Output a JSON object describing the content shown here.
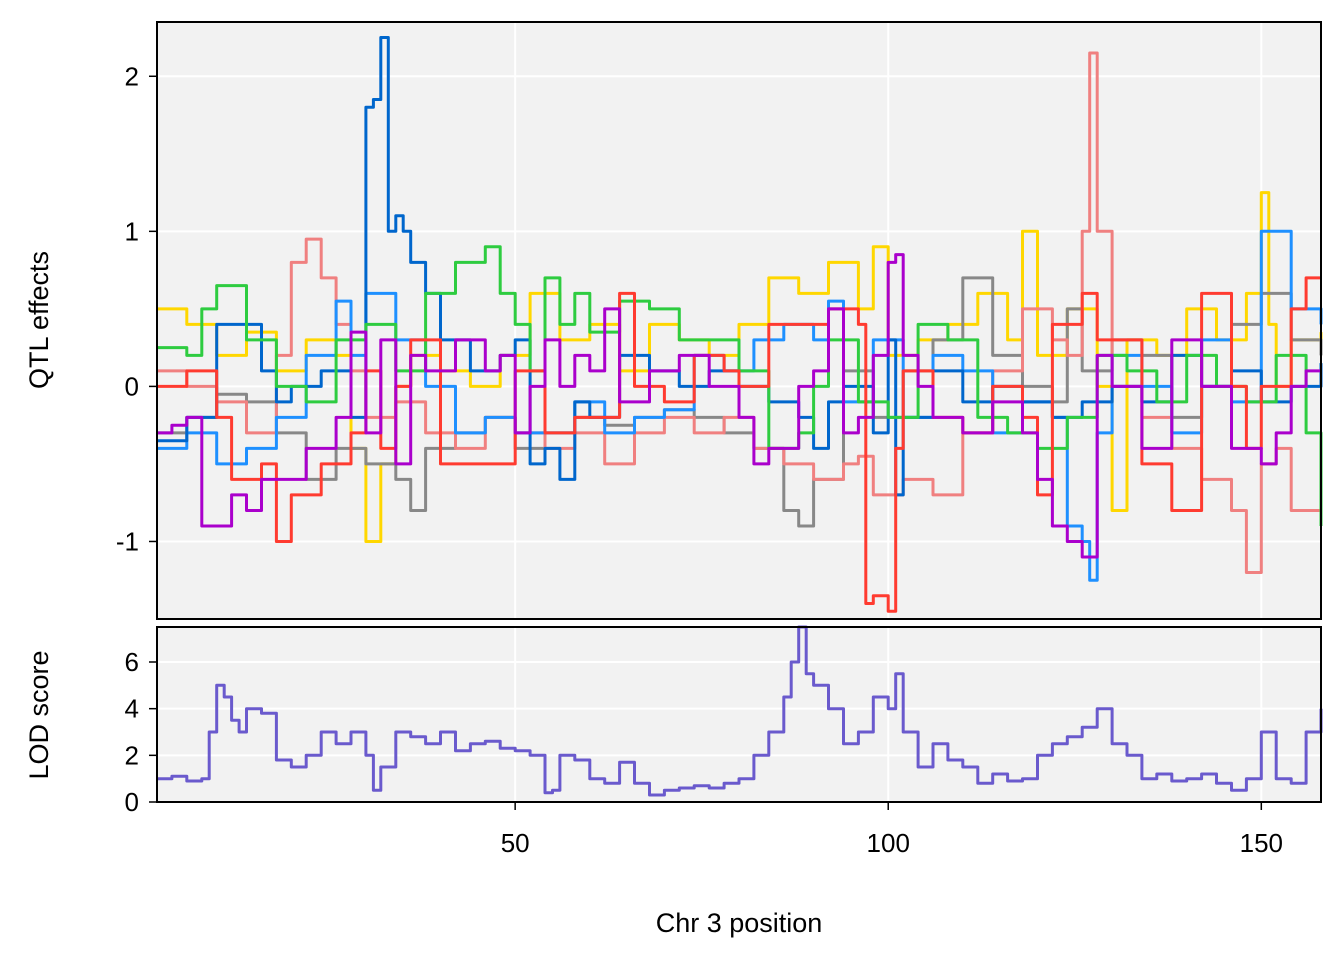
{
  "chart_data": [
    {
      "type": "line",
      "title": "",
      "xlabel": "",
      "ylabel": "QTL effects",
      "xlim": [
        2,
        158
      ],
      "ylim": [
        -1.5,
        2.35
      ],
      "x_ticks": [
        50,
        100,
        150
      ],
      "y_ticks": [
        -1,
        0,
        1,
        2
      ],
      "y_tick_labels": [
        "-1",
        "0",
        "1",
        "2"
      ],
      "grid": true,
      "background": "#f2f2f2",
      "series": [
        {
          "color": "#ffd700",
          "x": [
            2,
            6,
            10,
            14,
            18,
            22,
            26,
            28,
            30,
            32,
            34,
            36,
            40,
            44,
            48,
            52,
            56,
            60,
            64,
            68,
            72,
            76,
            80,
            84,
            88,
            92,
            96,
            98,
            100,
            104,
            108,
            112,
            116,
            118,
            120,
            124,
            128,
            130,
            132,
            136,
            140,
            144,
            148,
            150,
            151,
            152,
            154,
            158
          ],
          "y": [
            0.5,
            0.4,
            0.2,
            0.35,
            0.1,
            0.3,
            0.2,
            -0.4,
            -1.0,
            -0.5,
            0.0,
            0.2,
            0.1,
            0.0,
            0.2,
            0.6,
            0.3,
            0.4,
            0.1,
            0.4,
            0.3,
            0.2,
            0.4,
            0.7,
            0.6,
            0.8,
            0.5,
            0.9,
            0.2,
            0.3,
            0.4,
            0.6,
            0.3,
            1.0,
            0.2,
            0.5,
            0.0,
            -0.8,
            0.3,
            0.2,
            0.5,
            0.3,
            0.6,
            1.25,
            0.4,
            0.0,
            0.3,
            0.35
          ]
        },
        {
          "color": "#888888",
          "x": [
            2,
            6,
            10,
            14,
            18,
            22,
            26,
            30,
            34,
            36,
            38,
            42,
            46,
            50,
            54,
            58,
            62,
            66,
            70,
            74,
            78,
            82,
            86,
            88,
            90,
            94,
            98,
            102,
            106,
            110,
            114,
            118,
            122,
            124,
            126,
            130,
            134,
            138,
            142,
            146,
            150,
            154,
            158
          ],
          "y": [
            -0.3,
            -0.2,
            -0.05,
            -0.1,
            -0.3,
            -0.6,
            -0.4,
            -0.5,
            -0.6,
            -0.8,
            -0.4,
            -0.3,
            -0.2,
            -0.4,
            -0.3,
            -0.2,
            -0.25,
            -0.2,
            -0.15,
            -0.2,
            -0.3,
            -0.4,
            -0.8,
            -0.9,
            -0.6,
            0.1,
            -0.2,
            0.1,
            0.3,
            0.7,
            0.2,
            0.0,
            -0.1,
            0.5,
            0.1,
            0.3,
            0.2,
            -0.2,
            0.0,
            0.4,
            0.6,
            0.3,
            0.2
          ]
        },
        {
          "color": "#f08080",
          "x": [
            2,
            6,
            10,
            14,
            18,
            20,
            22,
            24,
            26,
            28,
            30,
            34,
            38,
            42,
            46,
            50,
            54,
            58,
            62,
            66,
            70,
            74,
            78,
            82,
            86,
            90,
            94,
            96,
            98,
            102,
            106,
            110,
            114,
            118,
            122,
            124,
            126,
            127,
            128,
            130,
            134,
            138,
            142,
            146,
            148,
            150,
            152,
            154,
            158
          ],
          "y": [
            0.1,
            0.0,
            -0.1,
            -0.3,
            0.2,
            0.8,
            0.95,
            0.7,
            0.4,
            0.1,
            -0.2,
            -0.1,
            -0.3,
            -0.4,
            -0.2,
            -0.3,
            -0.4,
            -0.3,
            -0.5,
            -0.3,
            -0.2,
            -0.3,
            -0.2,
            -0.4,
            -0.5,
            -0.6,
            -0.5,
            -0.45,
            -0.7,
            -0.6,
            -0.7,
            -0.3,
            0.1,
            0.5,
            0.3,
            0.2,
            1.0,
            2.15,
            1.0,
            0.0,
            -0.2,
            -0.4,
            -0.6,
            -0.8,
            -1.2,
            -0.5,
            -0.4,
            -0.8,
            -0.7
          ]
        },
        {
          "color": "#1e90ff",
          "x": [
            2,
            6,
            10,
            14,
            18,
            22,
            26,
            28,
            30,
            34,
            38,
            42,
            46,
            50,
            54,
            58,
            62,
            66,
            70,
            74,
            78,
            82,
            86,
            90,
            92,
            94,
            98,
            102,
            106,
            110,
            114,
            118,
            122,
            124,
            126,
            127,
            128,
            130,
            134,
            138,
            142,
            146,
            150,
            154,
            158
          ],
          "y": [
            -0.4,
            -0.3,
            -0.5,
            -0.4,
            -0.2,
            0.2,
            0.55,
            0.2,
            0.6,
            0.3,
            0.0,
            -0.3,
            -0.2,
            -0.3,
            -0.3,
            -0.1,
            -0.3,
            -0.2,
            -0.15,
            0.2,
            0.1,
            0.3,
            0.4,
            0.3,
            0.55,
            -0.1,
            0.3,
            -0.2,
            0.2,
            0.1,
            -0.3,
            -0.1,
            -0.2,
            -0.9,
            -1.0,
            -1.25,
            -0.3,
            0.2,
            0.0,
            -0.3,
            0.3,
            -0.1,
            1.0,
            0.5,
            0.4
          ]
        },
        {
          "color": "#0066cc",
          "x": [
            2,
            6,
            10,
            14,
            16,
            18,
            20,
            24,
            28,
            30,
            31,
            32,
            33,
            34,
            35,
            36,
            38,
            40,
            44,
            48,
            50,
            52,
            54,
            56,
            58,
            60,
            64,
            68,
            72,
            76,
            80,
            84,
            88,
            90,
            92,
            94,
            98,
            100,
            101,
            102,
            106,
            110,
            114,
            118,
            122,
            126,
            130,
            134,
            138,
            142,
            146,
            150,
            154,
            158
          ],
          "y": [
            -0.35,
            -0.2,
            0.4,
            0.4,
            0.1,
            -0.1,
            0.0,
            0.1,
            -0.2,
            1.8,
            1.85,
            2.25,
            1.0,
            1.1,
            1.0,
            0.8,
            0.6,
            0.3,
            0.1,
            0.2,
            0.3,
            -0.5,
            -0.4,
            -0.6,
            -0.1,
            -0.2,
            0.2,
            0.1,
            0.0,
            0.1,
            0.0,
            -0.1,
            -0.2,
            -0.4,
            -0.1,
            0.0,
            -0.3,
            0.3,
            -0.7,
            -0.2,
            0.1,
            -0.1,
            0.0,
            -0.1,
            -0.2,
            -0.1,
            0.0,
            -0.1,
            0.2,
            0.0,
            0.1,
            -0.1,
            0.0,
            0.15
          ]
        },
        {
          "color": "#2ecc40",
          "x": [
            2,
            6,
            8,
            10,
            14,
            18,
            22,
            26,
            30,
            34,
            38,
            42,
            46,
            48,
            50,
            52,
            54,
            56,
            58,
            60,
            64,
            68,
            72,
            76,
            80,
            84,
            88,
            90,
            92,
            96,
            100,
            104,
            108,
            112,
            116,
            120,
            124,
            128,
            132,
            136,
            140,
            144,
            148,
            152,
            156,
            158
          ],
          "y": [
            0.25,
            0.2,
            0.5,
            0.65,
            0.3,
            0.0,
            -0.1,
            0.3,
            0.4,
            0.1,
            0.6,
            0.8,
            0.9,
            0.6,
            0.4,
            0.1,
            0.7,
            0.4,
            0.6,
            0.35,
            0.55,
            0.5,
            0.3,
            0.3,
            0.1,
            -0.4,
            -0.3,
            0.0,
            0.3,
            -0.1,
            -0.2,
            0.4,
            0.3,
            -0.2,
            -0.3,
            -0.4,
            -0.2,
            0.2,
            0.1,
            -0.1,
            0.2,
            0.0,
            -0.1,
            0.2,
            -0.3,
            -0.9
          ]
        },
        {
          "color": "#ff3b30",
          "x": [
            2,
            6,
            10,
            12,
            16,
            18,
            20,
            24,
            28,
            30,
            32,
            34,
            36,
            40,
            44,
            48,
            50,
            54,
            58,
            62,
            64,
            66,
            70,
            74,
            78,
            80,
            84,
            88,
            92,
            96,
            97,
            98,
            100,
            101,
            102,
            106,
            110,
            114,
            118,
            120,
            122,
            126,
            128,
            130,
            134,
            138,
            142,
            146,
            148,
            150,
            154,
            156,
            158
          ],
          "y": [
            0.0,
            0.1,
            -0.2,
            -0.6,
            -0.5,
            -1.0,
            -0.7,
            -0.5,
            -0.3,
            0.1,
            -0.4,
            0.0,
            0.3,
            -0.5,
            -0.5,
            -0.5,
            0.1,
            -0.3,
            -0.2,
            -0.2,
            0.6,
            0.0,
            -0.1,
            0.2,
            0.1,
            0.0,
            0.4,
            0.4,
            0.5,
            0.4,
            -1.4,
            -1.35,
            -1.45,
            -0.4,
            0.1,
            -0.2,
            -0.3,
            0.0,
            -0.2,
            -0.7,
            0.4,
            0.6,
            0.3,
            0.3,
            -0.5,
            -0.8,
            0.6,
            0.0,
            -0.4,
            0.0,
            0.5,
            0.7,
            0.7
          ]
        },
        {
          "color": "#aa00cc",
          "x": [
            2,
            4,
            6,
            8,
            10,
            12,
            14,
            16,
            18,
            22,
            26,
            28,
            30,
            32,
            34,
            36,
            38,
            42,
            46,
            48,
            50,
            52,
            54,
            56,
            58,
            60,
            62,
            64,
            68,
            72,
            76,
            80,
            82,
            84,
            88,
            90,
            92,
            94,
            96,
            98,
            100,
            101,
            102,
            104,
            106,
            110,
            114,
            118,
            120,
            122,
            124,
            126,
            128,
            130,
            134,
            138,
            142,
            146,
            150,
            152,
            154,
            156,
            158
          ],
          "y": [
            -0.3,
            -0.25,
            -0.2,
            -0.9,
            -0.9,
            -0.7,
            -0.8,
            -0.6,
            -0.6,
            -0.4,
            -0.2,
            0.35,
            -0.3,
            0.3,
            -0.5,
            0.2,
            0.1,
            0.3,
            0.1,
            0.2,
            -0.3,
            0.0,
            0.3,
            0.0,
            0.2,
            0.1,
            0.5,
            -0.1,
            0.1,
            0.2,
            0.0,
            -0.2,
            -0.5,
            -0.4,
            0.0,
            0.1,
            0.5,
            -0.3,
            -0.2,
            0.2,
            0.8,
            0.85,
            0.2,
            0.0,
            -0.2,
            -0.3,
            -0.1,
            -0.3,
            -0.6,
            -0.9,
            -1.0,
            -1.1,
            0.2,
            0.0,
            -0.4,
            0.3,
            0.0,
            -0.4,
            -0.5,
            -0.3,
            0.0,
            0.1,
            0.1
          ]
        }
      ]
    },
    {
      "type": "line",
      "title": "",
      "xlabel": "Chr 3 position",
      "ylabel": "LOD score",
      "xlim": [
        2,
        158
      ],
      "ylim": [
        0,
        7.5
      ],
      "x_ticks": [
        50,
        100,
        150
      ],
      "x_tick_labels": [
        "50",
        "100",
        "150"
      ],
      "y_ticks": [
        0,
        2,
        4,
        6
      ],
      "y_tick_labels": [
        "0",
        "2",
        "4",
        "6"
      ],
      "grid": true,
      "background": "#f2f2f2",
      "series": [
        {
          "color": "#6a5acd",
          "x": [
            2,
            4,
            6,
            8,
            9,
            10,
            11,
            12,
            13,
            14,
            16,
            18,
            20,
            22,
            24,
            26,
            28,
            30,
            31,
            32,
            34,
            36,
            38,
            40,
            42,
            44,
            46,
            48,
            50,
            52,
            54,
            55,
            56,
            58,
            60,
            62,
            64,
            66,
            68,
            70,
            72,
            74,
            76,
            78,
            80,
            82,
            84,
            86,
            87,
            88,
            89,
            90,
            92,
            94,
            96,
            98,
            100,
            101,
            102,
            104,
            106,
            108,
            110,
            112,
            114,
            116,
            118,
            120,
            122,
            124,
            126,
            128,
            130,
            132,
            134,
            136,
            138,
            140,
            142,
            144,
            146,
            148,
            150,
            152,
            154,
            156,
            158
          ],
          "y": [
            1.0,
            1.1,
            0.9,
            1.0,
            3.0,
            5.0,
            4.5,
            3.5,
            3.0,
            4.0,
            3.8,
            1.8,
            1.5,
            2.0,
            3.0,
            2.5,
            3.0,
            2.0,
            0.5,
            1.5,
            3.0,
            2.8,
            2.5,
            3.0,
            2.2,
            2.5,
            2.6,
            2.3,
            2.2,
            2.0,
            0.4,
            0.5,
            2.0,
            1.8,
            1.0,
            0.8,
            1.7,
            0.8,
            0.3,
            0.5,
            0.6,
            0.7,
            0.6,
            0.8,
            1.0,
            2.0,
            3.0,
            4.5,
            6.0,
            7.5,
            5.5,
            5.0,
            4.0,
            2.5,
            3.0,
            4.5,
            4.0,
            5.5,
            3.0,
            1.5,
            2.5,
            1.8,
            1.5,
            0.8,
            1.2,
            0.9,
            1.0,
            2.0,
            2.5,
            2.8,
            3.2,
            4.0,
            2.5,
            2.0,
            1.0,
            1.2,
            0.9,
            1.0,
            1.2,
            0.8,
            0.5,
            1.0,
            3.0,
            1.0,
            0.8,
            3.0,
            4.0
          ]
        }
      ]
    }
  ]
}
